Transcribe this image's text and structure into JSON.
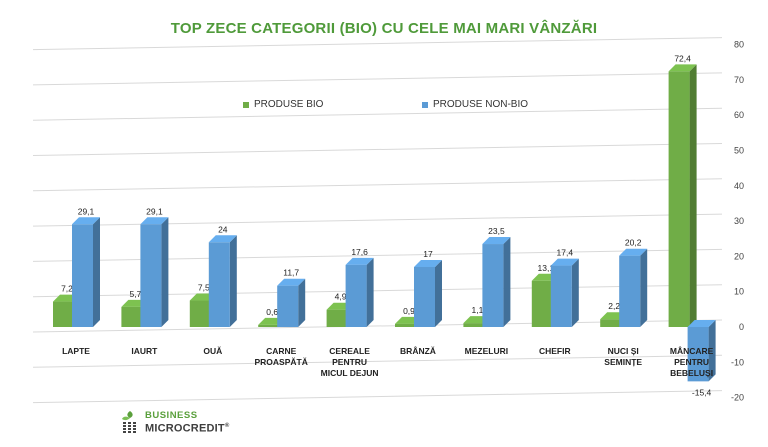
{
  "chart_data": {
    "type": "bar",
    "title": "TOP ZECE CATEGORII (BIO) CU CELE MAI MARI VÂNZĂRI",
    "categories": [
      [
        "LAPTE"
      ],
      [
        "IAURT"
      ],
      [
        "OUĂ"
      ],
      [
        "CARNE",
        "PROASPĂTĂ"
      ],
      [
        "CEREALE",
        "PENTRU",
        "MICUL DEJUN"
      ],
      [
        "BRÂNZĂ"
      ],
      [
        "MEZELURI"
      ],
      [
        "CHEFIR"
      ],
      [
        "NUCI ȘI",
        "SEMINȚE"
      ],
      [
        "MÂNCARE",
        "PENTRU",
        "BEBELUȘI"
      ]
    ],
    "series": [
      {
        "name": "PRODUSE BIO",
        "values": [
          7.2,
          5.7,
          7.5,
          0.6,
          4.9,
          0.9,
          1.1,
          13.1,
          2.2,
          72.4
        ],
        "labels": [
          "7,2",
          "5,7",
          "7,5",
          "0,6",
          "4,9",
          "0,9",
          "1,1",
          "13,1",
          "2,2",
          "72,4"
        ],
        "color": "#70ad47"
      },
      {
        "name": "PRODUSE NON-BIO",
        "values": [
          29.1,
          29.1,
          24,
          11.7,
          17.6,
          17,
          23.5,
          17.4,
          20.2,
          -15.4
        ],
        "labels": [
          "29,1",
          "29,1",
          "24",
          "11,7",
          "17,6",
          "17",
          "23,5",
          "17,4",
          "20,2",
          "-15,4"
        ],
        "color": "#5b9bd5"
      }
    ],
    "ylim": [
      -20,
      80
    ],
    "yticks": [
      -20,
      -10,
      0,
      10,
      20,
      30,
      40,
      50,
      60,
      70,
      80
    ],
    "grid": true,
    "legend": "top-left"
  },
  "branding": {
    "line1": "BUSINESS",
    "line2": "MICROCREDIT",
    "reg": "®"
  }
}
